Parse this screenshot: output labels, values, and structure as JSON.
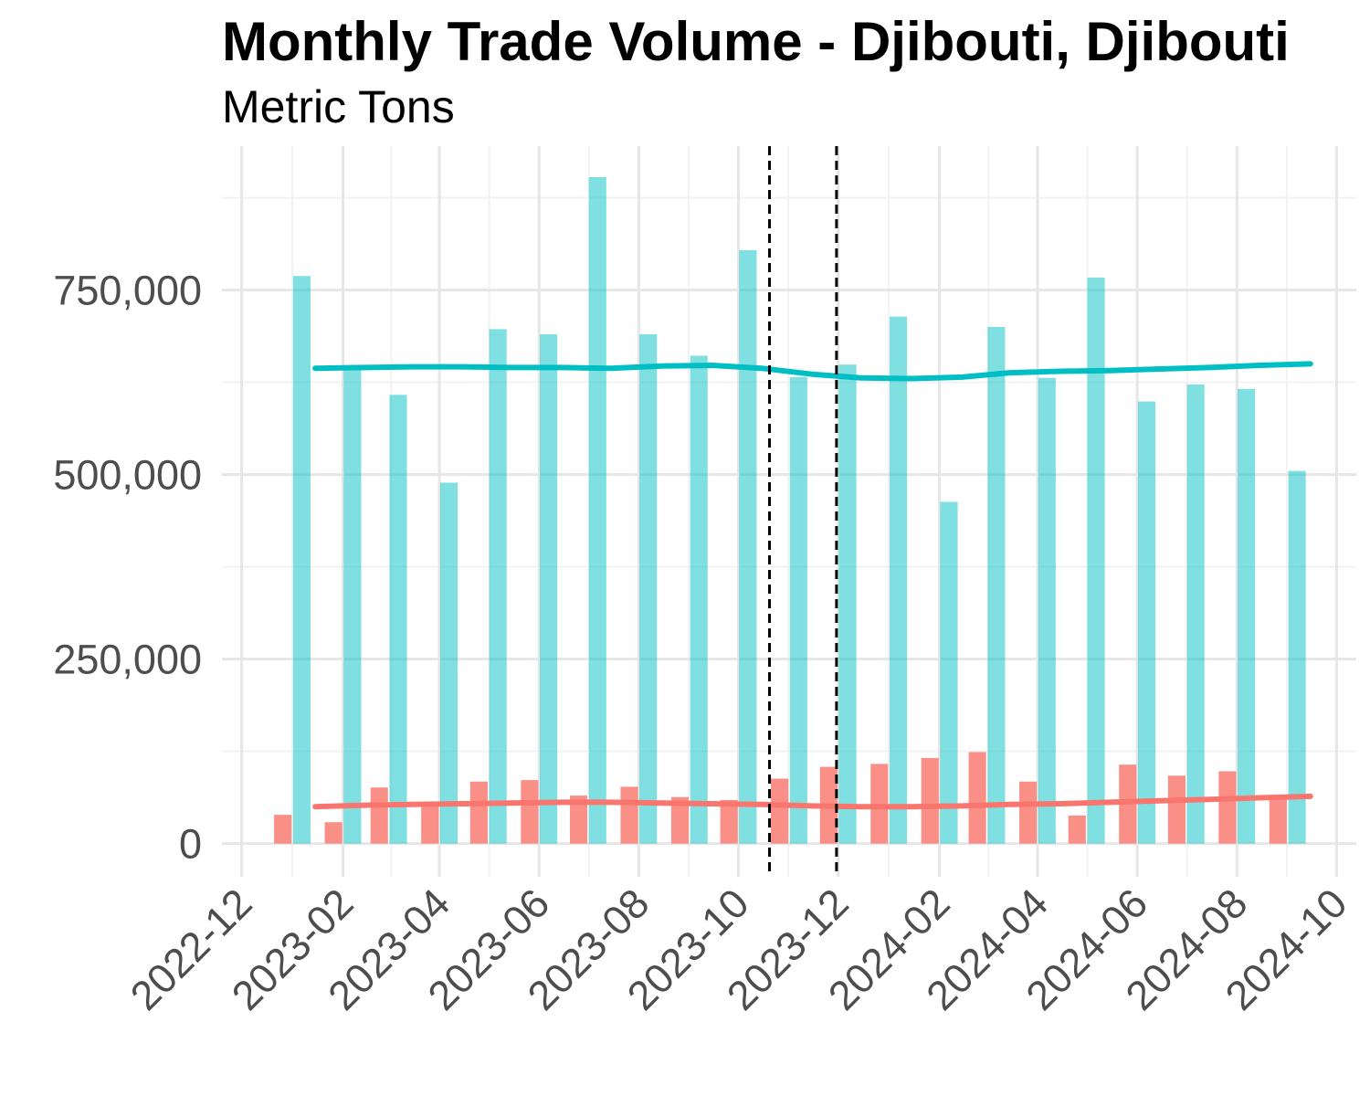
{
  "chart_data": {
    "type": "bar",
    "title": "Monthly Trade Volume - Djibouti, Djibouti",
    "subtitle": "Metric Tons",
    "xlabel": "",
    "ylabel": "",
    "ylim": [
      -45000,
      945000
    ],
    "xlim": [
      "2022-12-01",
      "2024-10-01"
    ],
    "grid": true,
    "legend": "none",
    "y_ticks": [
      {
        "value": 0,
        "label": "0"
      },
      {
        "value": 250000,
        "label": "250,000"
      },
      {
        "value": 500000,
        "label": "500,000"
      },
      {
        "value": 750000,
        "label": "750,000"
      }
    ],
    "x_ticks": [
      {
        "date": "2022-12-01",
        "label": "2022-12"
      },
      {
        "date": "2023-02-01",
        "label": "2023-02"
      },
      {
        "date": "2023-04-01",
        "label": "2023-04"
      },
      {
        "date": "2023-06-01",
        "label": "2023-06"
      },
      {
        "date": "2023-08-01",
        "label": "2023-08"
      },
      {
        "date": "2023-10-01",
        "label": "2023-10"
      },
      {
        "date": "2023-12-01",
        "label": "2023-12"
      },
      {
        "date": "2024-02-01",
        "label": "2024-02"
      },
      {
        "date": "2024-04-01",
        "label": "2024-04"
      },
      {
        "date": "2024-06-01",
        "label": "2024-06"
      },
      {
        "date": "2024-08-01",
        "label": "2024-08"
      },
      {
        "date": "2024-10-01",
        "label": "2024-10"
      }
    ],
    "vlines": [
      "2023-10-20",
      "2023-11-30"
    ],
    "x": [
      "2023-01",
      "2023-02",
      "2023-03",
      "2023-04",
      "2023-05",
      "2023-06",
      "2023-07",
      "2023-08",
      "2023-09",
      "2023-10",
      "2023-11",
      "2023-12",
      "2024-01",
      "2024-02",
      "2024-03",
      "2024-04",
      "2024-05",
      "2024-06",
      "2024-07",
      "2024-08",
      "2024-09"
    ],
    "series": [
      {
        "color": "#F8766D",
        "bar_values": [
          39000,
          29000,
          76000,
          56000,
          84000,
          86000,
          65000,
          77000,
          63000,
          59000,
          88000,
          104000,
          108000,
          116000,
          124000,
          84000,
          38000,
          107000,
          92000,
          98000,
          66000
        ],
        "trend_values": [
          50000,
          52000,
          53000,
          54000,
          55000,
          56000,
          56000,
          55000,
          54000,
          53000,
          51000,
          50000,
          50000,
          51000,
          53000,
          54000,
          56000,
          58000,
          60000,
          62000,
          64000
        ]
      },
      {
        "color": "#00BFC4",
        "bar_values": [
          769000,
          642000,
          608000,
          489000,
          697000,
          690000,
          903000,
          690000,
          661000,
          804000,
          632000,
          649000,
          714000,
          463000,
          700000,
          631000,
          767000,
          599000,
          622000,
          616000,
          505000
        ]
      },
      {
        "color": "#00BFC4",
        "trend_values": [
          644000,
          645000,
          646000,
          646000,
          645000,
          645000,
          644000,
          647000,
          648000,
          644000,
          636000,
          631000,
          630000,
          632000,
          638000,
          640000,
          641000,
          643000,
          645000,
          648000,
          650000
        ]
      }
    ]
  }
}
